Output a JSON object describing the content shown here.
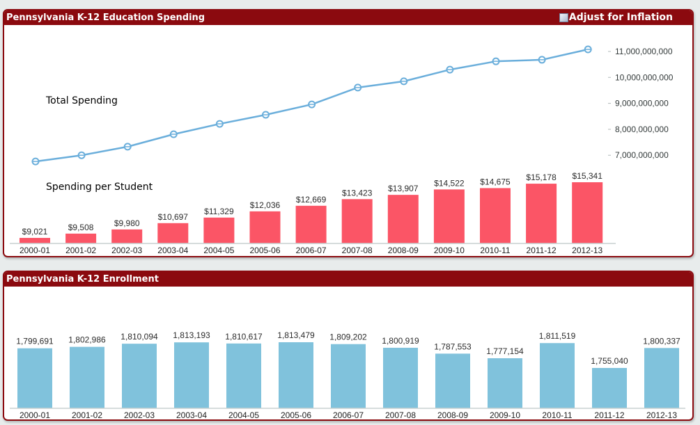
{
  "colors": {
    "panel_header": "#8b0a0f",
    "line_series": "#6aaedb",
    "spending_bars": "#fb5566",
    "enrollment_bars": "#80c2dc",
    "axis_line": "#c8d0d0"
  },
  "spending_panel": {
    "title": "Pennsylvania K-12 Education Spending",
    "inflation_toggle": {
      "label": "Adjust for Inflation",
      "checked": false
    }
  },
  "enrollment_panel": {
    "title": "Pennsylvania K-12 Enrollment"
  },
  "chart_data": [
    {
      "id": "total-spending",
      "type": "line",
      "series_label": "Total Spending",
      "categories": [
        "2000-01",
        "2001-02",
        "2002-03",
        "2003-04",
        "2004-05",
        "2005-06",
        "2006-07",
        "2007-08",
        "2008-09",
        "2009-10",
        "2010-11",
        "2011-12",
        "2012-13"
      ],
      "values": [
        6760000000,
        7000000000,
        7330000000,
        7810000000,
        8210000000,
        8560000000,
        8960000000,
        9610000000,
        9850000000,
        10300000000,
        10620000000,
        10680000000,
        11080000000
      ],
      "y_axis_position": "right",
      "y_ticks": [
        7000000000,
        8000000000,
        9000000000,
        10000000000,
        11000000000
      ],
      "y_tick_labels": [
        "7,000,000,000",
        "8,000,000,000",
        "9,000,000,000",
        "10,000,000,000",
        "11,000,000,000"
      ],
      "grid": false
    },
    {
      "id": "spending-per-student",
      "type": "bar",
      "series_label": "Spending per Student",
      "categories": [
        "2000-01",
        "2001-02",
        "2002-03",
        "2003-04",
        "2004-05",
        "2005-06",
        "2006-07",
        "2007-08",
        "2008-09",
        "2009-10",
        "2010-11",
        "2011-12",
        "2012-13"
      ],
      "values": [
        9021,
        9508,
        9980,
        10697,
        11329,
        12036,
        12669,
        13423,
        13907,
        14522,
        14675,
        15178,
        15341
      ],
      "data_labels": [
        "$9,021",
        "$9,508",
        "$9,980",
        "$10,697",
        "$11,329",
        "$12,036",
        "$12,669",
        "$13,423",
        "$13,907",
        "$14,522",
        "$14,675",
        "$15,178",
        "$15,341"
      ],
      "y_axis_min": 8390,
      "grid": false
    },
    {
      "id": "enrollment",
      "type": "bar",
      "title": "Pennsylvania K-12 Enrollment",
      "categories": [
        "2000-01",
        "2001-02",
        "2002-03",
        "2003-04",
        "2004-05",
        "2005-06",
        "2006-07",
        "2007-08",
        "2008-09",
        "2009-10",
        "2010-11",
        "2011-12",
        "2012-13"
      ],
      "values": [
        1799691,
        1802986,
        1810094,
        1813193,
        1810617,
        1813479,
        1809202,
        1800919,
        1787553,
        1777154,
        1811519,
        1755040,
        1800337
      ],
      "data_labels": [
        "1,799,691",
        "1,802,986",
        "1,810,094",
        "1,813,193",
        "1,810,617",
        "1,813,479",
        "1,809,202",
        "1,800,919",
        "1,787,553",
        "1,777,154",
        "1,811,519",
        "1,755,040",
        "1,800,337"
      ],
      "y_axis_min": 1663400,
      "grid": false
    }
  ]
}
